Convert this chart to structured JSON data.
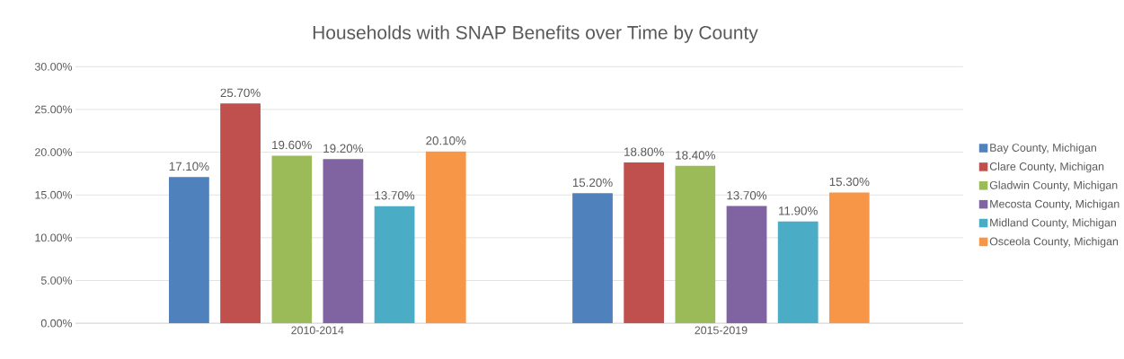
{
  "chart_data": {
    "type": "bar",
    "title": "Households with SNAP Benefits over Time by County",
    "categories": [
      "2010-2014",
      "2015-2019"
    ],
    "series": [
      {
        "name": "Bay County, Michigan",
        "color": "#4f81bd",
        "values": [
          17.1,
          15.2
        ],
        "value_labels": [
          "17.10%",
          "15.20%"
        ]
      },
      {
        "name": "Clare County, Michigan",
        "color": "#c0504d",
        "values": [
          25.7,
          18.8
        ],
        "value_labels": [
          "25.70%",
          "18.80%"
        ]
      },
      {
        "name": "Gladwin County, Michigan",
        "color": "#9bbb59",
        "values": [
          19.6,
          18.4
        ],
        "value_labels": [
          "19.60%",
          "18.40%"
        ]
      },
      {
        "name": "Mecosta County, Michigan",
        "color": "#8064a2",
        "values": [
          19.2,
          13.7
        ],
        "value_labels": [
          "19.20%",
          "13.70%"
        ]
      },
      {
        "name": "Midland County, Michigan",
        "color": "#4bacc6",
        "values": [
          13.7,
          11.9
        ],
        "value_labels": [
          "13.70%",
          "11.90%"
        ]
      },
      {
        "name": "Osceola County, Michigan",
        "color": "#f79646",
        "values": [
          20.1,
          15.3
        ],
        "value_labels": [
          "20.10%",
          "15.30%"
        ]
      }
    ],
    "ylim": [
      0,
      30
    ],
    "yticks": [
      {
        "value": 0,
        "label": "0.00%"
      },
      {
        "value": 5,
        "label": "5.00%"
      },
      {
        "value": 10,
        "label": "10.00%"
      },
      {
        "value": 15,
        "label": "15.00%"
      },
      {
        "value": 20,
        "label": "20.00%"
      },
      {
        "value": 25,
        "label": "25.00%"
      },
      {
        "value": 30,
        "label": "30.00%"
      }
    ],
    "grid": "y",
    "legend": "right"
  }
}
